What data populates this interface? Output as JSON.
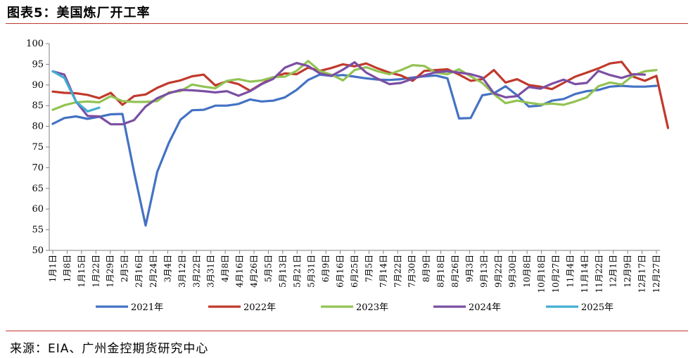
{
  "figure_title": "图表5：美国炼厂开工率",
  "source": "来源：EIA、广州金控期货研究中心",
  "chart_data": {
    "type": "line",
    "ylim": [
      50,
      100
    ],
    "yticks": [
      50,
      55,
      60,
      65,
      70,
      75,
      80,
      85,
      90,
      95,
      100
    ],
    "grid": false,
    "legend_position": "bottom",
    "x_tick_labels": [
      "1月1日",
      "1月8日",
      "1月15日",
      "1月22日",
      "1月29日",
      "2月5日",
      "2月16日",
      "2月24日",
      "3月4日",
      "3月12日",
      "3月22日",
      "3月31日",
      "4月8日",
      "4月16日",
      "4月26日",
      "5月5日",
      "5月13日",
      "5月21日",
      "5月31日",
      "6月9日",
      "6月16日",
      "6月25日",
      "7月5日",
      "7月14日",
      "7月22日",
      "7月30日",
      "8月9日",
      "8月18日",
      "8月26日",
      "9月3日",
      "9月13日",
      "9月22日",
      "9月30日",
      "10月8日",
      "10月18日",
      "10月27日",
      "11月4日",
      "11月14日",
      "11月22日",
      "12月1日",
      "12月9日",
      "12月17日",
      "12月27日"
    ],
    "series": [
      {
        "name": "2021年",
        "color": "#4472c4",
        "values": [
          80.6,
          82.0,
          82.4,
          81.8,
          82.3,
          82.9,
          83.0,
          69.0,
          56.0,
          69.0,
          76.0,
          81.6,
          83.9,
          84.0,
          85.0,
          85.0,
          85.4,
          86.5,
          86.0,
          86.2,
          87.0,
          88.8,
          91.2,
          92.5,
          92.2,
          92.4,
          92.0,
          91.6,
          91.3,
          91.2,
          91.4,
          91.8,
          92.1,
          92.3,
          91.6,
          81.9,
          82.0,
          87.5,
          88.0,
          89.7,
          87.5,
          84.8,
          85.0,
          86.2,
          86.6,
          87.8,
          88.5,
          88.8,
          89.6,
          89.8,
          89.6,
          89.6,
          89.8
        ]
      },
      {
        "name": "2022年",
        "color": "#c0392b",
        "values": [
          88.4,
          88.1,
          88.0,
          87.6,
          86.8,
          88.1,
          85.2,
          87.3,
          87.7,
          89.3,
          90.5,
          91.1,
          92.1,
          92.5,
          89.9,
          90.9,
          90.2,
          88.6,
          90.3,
          91.8,
          92.8,
          92.6,
          94.2,
          93.4,
          94.1,
          95.0,
          94.5,
          95.2,
          94.0,
          93.0,
          92.3,
          91.0,
          93.4,
          93.6,
          93.8,
          92.5,
          91.0,
          91.4,
          93.6,
          90.6,
          91.4,
          90.0,
          89.6,
          89.0,
          90.5,
          92.0,
          93.0,
          94.0,
          95.2,
          95.6,
          92.0,
          91.0,
          92.2,
          79.6
        ]
      },
      {
        "name": "2023年",
        "color": "#92c353",
        "values": [
          84.0,
          85.1,
          85.8,
          86.0,
          85.8,
          87.3,
          86.1,
          85.9,
          85.9,
          86.1,
          88.2,
          88.5,
          90.1,
          89.6,
          89.2,
          91.0,
          91.4,
          90.8,
          91.1,
          91.9,
          92.0,
          93.4,
          95.8,
          93.4,
          92.5,
          91.1,
          93.6,
          94.3,
          93.3,
          92.6,
          93.6,
          94.8,
          94.6,
          93.0,
          92.6,
          93.8,
          92.1,
          90.5,
          87.8,
          85.6,
          86.2,
          85.7,
          85.3,
          85.5,
          85.2,
          86.0,
          87.0,
          89.7,
          90.6,
          90.1,
          92.3,
          93.3,
          93.6
        ]
      },
      {
        "name": "2024年",
        "color": "#7b4fa3",
        "values": [
          93.3,
          92.5,
          86.0,
          82.5,
          82.4,
          80.5,
          80.5,
          81.5,
          84.8,
          86.8,
          88.0,
          88.8,
          88.7,
          88.5,
          88.2,
          88.5,
          87.4,
          88.5,
          90.2,
          91.5,
          94.2,
          95.3,
          94.6,
          92.8,
          92.2,
          93.7,
          95.5,
          93.0,
          91.5,
          90.2,
          90.5,
          91.5,
          92.3,
          93.1,
          93.3,
          93.0,
          92.6,
          91.8,
          88.0,
          87.0,
          87.3,
          89.5,
          89.1,
          90.3,
          91.3,
          90.2,
          90.5,
          93.4,
          92.4,
          91.7,
          92.6,
          92.5
        ]
      },
      {
        "name": "2025年",
        "color": "#41aed3",
        "values": [
          93.3,
          91.7,
          86.0,
          83.6,
          84.5
        ]
      }
    ]
  }
}
